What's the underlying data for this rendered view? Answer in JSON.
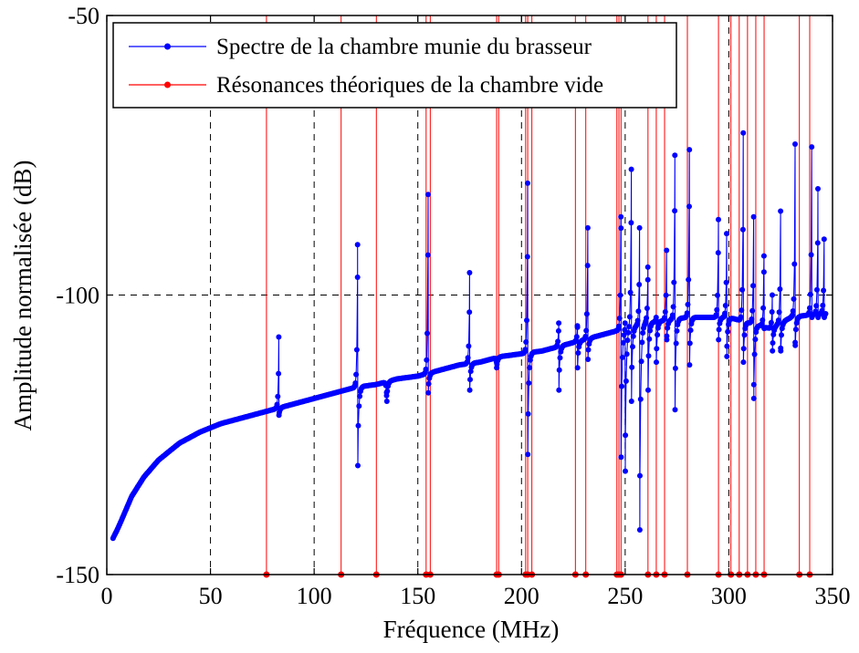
{
  "chart_data": {
    "type": "line",
    "title": "",
    "xlabel": "Fréquence (MHz)",
    "ylabel": "Amplitude normalisée (dB)",
    "xlim": [
      0,
      350
    ],
    "ylim": [
      -150,
      -50
    ],
    "xticks": [
      "0",
      "50",
      "100",
      "150",
      "200",
      "250",
      "300",
      "350"
    ],
    "yticks": [
      "-50",
      "-100",
      "-150"
    ],
    "grid": "dashed gridlines at x = 50, 100, 150, 200, 250, 300 and y = -100",
    "legend_position": "top-left",
    "colors": {
      "spectrum": "#0000ff",
      "resonance": "#ff0000",
      "grid": "#000000"
    },
    "series": [
      {
        "name": "Spectre de la chambre munie du brasseur",
        "style": "blue line with dot markers",
        "baseline": [
          [
            3,
            -143.5
          ],
          [
            5,
            -142
          ],
          [
            8,
            -139.5
          ],
          [
            12,
            -136
          ],
          [
            18,
            -132.5
          ],
          [
            25,
            -129.5
          ],
          [
            35,
            -126.5
          ],
          [
            45,
            -124.5
          ],
          [
            55,
            -123
          ],
          [
            65,
            -122
          ],
          [
            75,
            -121
          ],
          [
            85,
            -120
          ],
          [
            95,
            -119
          ],
          [
            105,
            -118
          ],
          [
            115,
            -117
          ],
          [
            120,
            -116.5
          ],
          [
            130,
            -116
          ],
          [
            140,
            -115
          ],
          [
            150,
            -114.5
          ],
          [
            160,
            -113.5
          ],
          [
            170,
            -112.5
          ],
          [
            180,
            -112
          ],
          [
            190,
            -111
          ],
          [
            200,
            -110.5
          ],
          [
            210,
            -110
          ],
          [
            220,
            -109
          ],
          [
            230,
            -108
          ],
          [
            240,
            -107
          ],
          [
            250,
            -106
          ],
          [
            260,
            -105
          ],
          [
            270,
            -104.5
          ],
          [
            280,
            -104
          ],
          [
            290,
            -104
          ],
          [
            300,
            -104
          ],
          [
            310,
            -105
          ],
          [
            320,
            -106
          ],
          [
            330,
            -104
          ],
          [
            340,
            -103.5
          ],
          [
            350,
            -103
          ]
        ],
        "resonance_peaks": [
          {
            "x": 83,
            "peak": -107.5,
            "dip": -121.5
          },
          {
            "x": 121,
            "peak": -91,
            "dip": -130.5
          },
          {
            "x": 135,
            "peak": -118,
            "dip": -119
          },
          {
            "x": 155,
            "peak": -82,
            "dip": -117.5
          },
          {
            "x": 175,
            "peak": -96,
            "dip": -117
          },
          {
            "x": 188,
            "peak": -112,
            "dip": -113
          },
          {
            "x": 203,
            "peak": -80,
            "dip": -128.5
          },
          {
            "x": 218,
            "peak": -105,
            "dip": -117
          },
          {
            "x": 227,
            "peak": -105.5,
            "dip": -113
          },
          {
            "x": 232,
            "peak": -88,
            "dip": -111.5
          },
          {
            "x": 248,
            "peak": -86,
            "dip": -129
          },
          {
            "x": 250,
            "peak": -105,
            "dip": -131.5
          },
          {
            "x": 253,
            "peak": -77.5,
            "dip": -119
          },
          {
            "x": 257,
            "peak": -88,
            "dip": -142
          },
          {
            "x": 261,
            "peak": -95,
            "dip": -117
          },
          {
            "x": 265,
            "peak": -104,
            "dip": -112
          },
          {
            "x": 270,
            "peak": -92,
            "dip": -108
          },
          {
            "x": 274,
            "peak": -75,
            "dip": -120.5
          },
          {
            "x": 281,
            "peak": -74,
            "dip": -112.5
          },
          {
            "x": 295,
            "peak": -86.5,
            "dip": -108
          },
          {
            "x": 299,
            "peak": -89,
            "dip": -111
          },
          {
            "x": 307,
            "peak": -71,
            "dip": -112
          },
          {
            "x": 312,
            "peak": -86,
            "dip": -118.5
          },
          {
            "x": 317,
            "peak": -93,
            "dip": -106
          },
          {
            "x": 321,
            "peak": -100,
            "dip": -110
          },
          {
            "x": 325,
            "peak": -85,
            "dip": -110
          },
          {
            "x": 332,
            "peak": -73,
            "dip": -109
          },
          {
            "x": 340,
            "peak": -73.5,
            "dip": -104
          },
          {
            "x": 343,
            "peak": -81,
            "dip": -104
          },
          {
            "x": 346,
            "peak": -90,
            "dip": -104
          }
        ]
      },
      {
        "name": "Résonances théoriques de la chambre vide",
        "style": "red vertical lines with dot markers at -150 dB",
        "x": [
          77,
          113,
          130,
          154,
          156,
          188,
          189,
          202,
          203,
          205,
          226,
          231,
          246,
          247,
          248,
          261,
          265,
          269,
          280,
          295,
          301,
          305,
          309,
          313,
          317,
          334,
          339
        ]
      }
    ]
  }
}
